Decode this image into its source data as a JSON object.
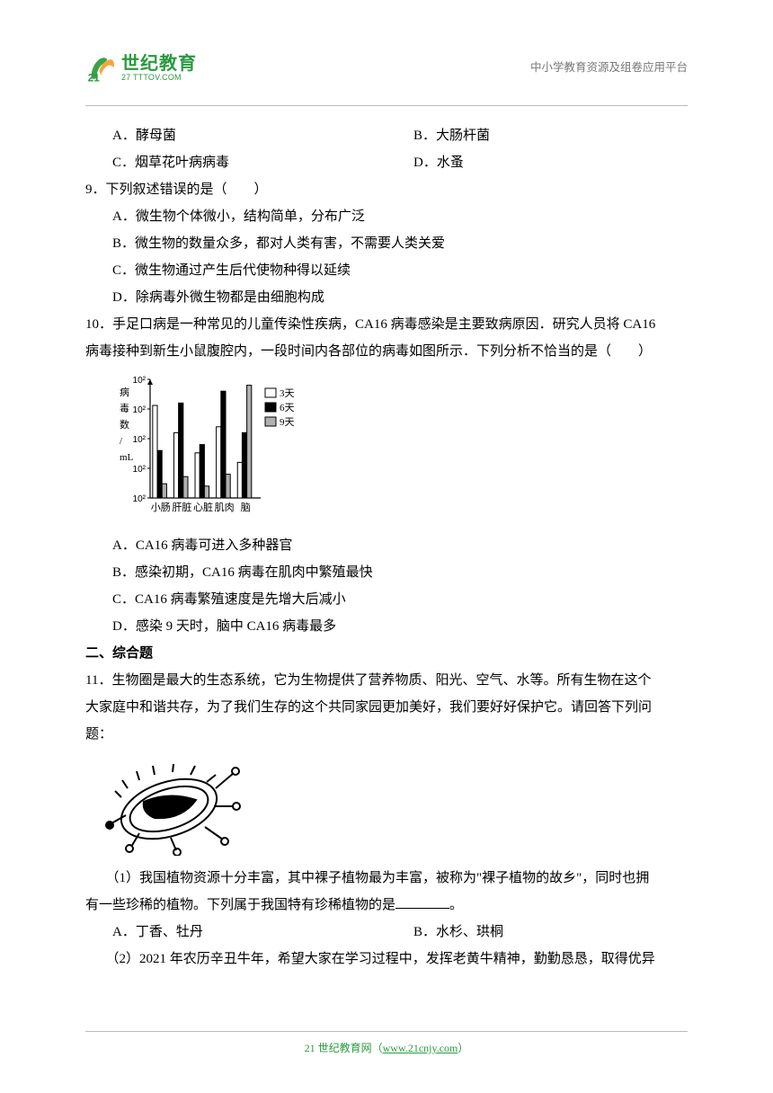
{
  "header": {
    "logo_big": "世纪教育",
    "logo_domain": "27 TTTOV.COM",
    "logo_num": "21",
    "right_text": "中小学教育资源及组卷应用平台"
  },
  "q8": {
    "opts": {
      "A": "A．酵母菌",
      "B": "B．大肠杆菌",
      "C": "C．烟草花叶病病毒",
      "D": "D．水蚤"
    }
  },
  "q9": {
    "stem": "9．下列叙述错误的是（　　）",
    "opts": {
      "A": "A．微生物个体微小，结构简单，分布广泛",
      "B": "B．微生物的数量众多，都对人类有害，不需要人类关爱",
      "C": "C．微生物通过产生后代使物种得以延续",
      "D": "D．除病毒外微生物都是由细胞构成"
    }
  },
  "q10": {
    "stem_part1": "10．手足口病是一种常见的儿童传染性疾病，",
    "stem_ca16": "CA16",
    "stem_part2": " 病毒感染是主要致病原因．研究人员将 ",
    "stem_part3": "病毒接种到新生小鼠腹腔内，一段时间内各部位的病毒如图所示．下列分析不恰当的是（　　）",
    "chart": {
      "type": "bar",
      "ylabel_lines": [
        "病",
        "毒",
        "数",
        "/",
        "mL"
      ],
      "ytick_labels": [
        "10²",
        "10²",
        "10²",
        "10²",
        "10²"
      ],
      "categories": [
        "小肠",
        "肝脏",
        "心脏",
        "肌肉",
        "脑"
      ],
      "legend": [
        "3天",
        "6天",
        "9天"
      ],
      "legend_colors": [
        "#ffffff",
        "#000000",
        "#b0b0b0"
      ],
      "values": [
        [
          78,
          40,
          12
        ],
        [
          55,
          80,
          18
        ],
        [
          38,
          45,
          10
        ],
        [
          60,
          90,
          20
        ],
        [
          30,
          55,
          95
        ]
      ],
      "ylim": [
        0,
        100
      ],
      "bar_border": "#000000",
      "axis_color": "#000000",
      "font_size": 11
    },
    "opts": {
      "A": "A．CA16 病毒可进入多种器官",
      "B": "B．感染初期，CA16 病毒在肌肉中繁殖最快",
      "C": "C．CA16 病毒繁殖速度是先增大后减小",
      "D": "D．感染 9 天时，脑中 CA16 病毒最多"
    }
  },
  "section2": "二、综合题",
  "q11": {
    "stem_l1": "11．生物圈是最大的生态系统，它为生物提供了营养物质、阳光、空气、水等。所有生物在这个",
    "stem_l2": "大家庭中和谐共存，为了我们生存的这个共同家园更加美好，我们要好好保护它。请回答下列问",
    "stem_l3": "题：",
    "sub1_l1": "　　（1）我国植物资源十分丰富，其中裸子植物最为丰富，被称为\"裸子植物的故乡\"，同时也拥",
    "sub1_l2": "有一些珍稀的植物。下列属于我国特有珍稀植物的是",
    "sub1_tail": "。",
    "opts": {
      "A": "A．丁香、牡丹",
      "B": "B．水杉、珙桐"
    },
    "sub2": "　　（2）2021 年农历辛丑牛年，希望大家在学习过程中，发挥老黄牛精神，勤勤恳恳，取得优异"
  },
  "footer": {
    "text_prefix": "21 世纪教育网（",
    "link": "www.21cnjy.com",
    "text_suffix": "）"
  }
}
